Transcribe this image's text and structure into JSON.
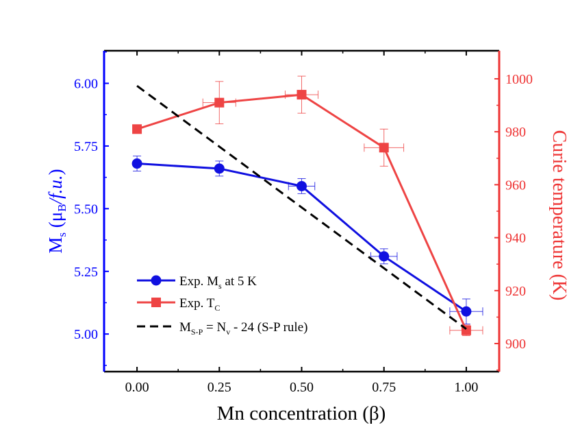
{
  "chart_data": {
    "type": "line",
    "xlabel": "Mn concentration (β)",
    "ylabel_left": {
      "main": "M",
      "sub": "s",
      "rest_open": " (μ",
      "sub2": "B",
      "rest_italic": "/f.u.",
      "rest_close": ")"
    },
    "ylabel_right": "Curie temperature (K)",
    "x_ticks": [
      "0.00",
      "0.25",
      "0.50",
      "0.75",
      "1.00"
    ],
    "y_left_ticks": [
      "5.00",
      "5.25",
      "5.50",
      "5.75",
      "6.00"
    ],
    "y_right_ticks": [
      "900",
      "920",
      "940",
      "960",
      "980",
      "1000"
    ],
    "xlim": [
      -0.1,
      1.1
    ],
    "ylim_left": [
      4.85,
      6.13
    ],
    "ylim_right": [
      889.4,
      1010.6
    ],
    "colors": {
      "left_axis": "#0000ff",
      "right_axis": "#ee3333",
      "ms_series": "#1010e0",
      "tc_series": "#ee4444",
      "sp_rule": "#000000"
    },
    "series": [
      {
        "key": "ms",
        "axis": "left",
        "marker": "circle",
        "x": [
          0.0,
          0.25,
          0.5,
          0.75,
          1.0
        ],
        "y": [
          5.68,
          5.66,
          5.59,
          5.31,
          5.09
        ],
        "yerr": [
          0.03,
          0.03,
          0.03,
          0.03,
          0.05
        ],
        "xerr": [
          0.0,
          0.0,
          0.04,
          0.04,
          0.05
        ]
      },
      {
        "key": "tc",
        "axis": "right",
        "marker": "square",
        "x": [
          0.0,
          0.25,
          0.5,
          0.75,
          1.0
        ],
        "y": [
          981,
          991,
          994,
          974,
          905
        ],
        "yerr": [
          0,
          8,
          7,
          7,
          2
        ],
        "xerr": [
          0.0,
          0.05,
          0.05,
          0.06,
          0.05
        ]
      },
      {
        "key": "sp",
        "axis": "left",
        "dashed": true,
        "x": [
          0.0,
          1.0
        ],
        "y": [
          5.99,
          5.02
        ]
      }
    ],
    "legend": {
      "placement": "bottom-left",
      "ms": {
        "pre": "Exp. M",
        "sub": "s",
        "post": " at 5 K"
      },
      "tc": {
        "pre": "Exp. T",
        "sub": "C",
        "post": ""
      },
      "sp": {
        "pre": "M",
        "sub": "S-P",
        "mid": " = N",
        "sub2": "v",
        "post": " - 24 (S-P rule)"
      }
    }
  }
}
